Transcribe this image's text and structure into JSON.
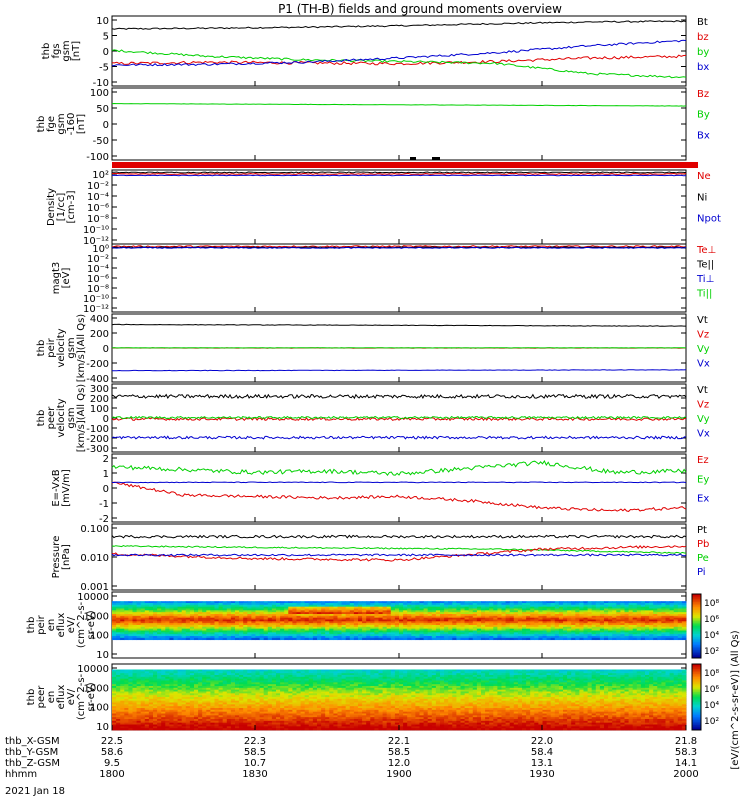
{
  "title": "P1 (TH-B) fields and ground moments overview",
  "colors": {
    "black": "#000000",
    "red": "#e00000",
    "green": "#00d000",
    "blue": "#0000d0"
  },
  "panels": [
    {
      "id": "fgs",
      "ylabel": [
        "thb",
        "fgs",
        "gsm",
        "[nT]"
      ],
      "yticks": [
        "10",
        "5",
        "0",
        "-5",
        "-10"
      ],
      "ylim": [
        -10,
        10
      ],
      "legend": [
        {
          "label": "Bt",
          "color": "#000000"
        },
        {
          "label": "bz",
          "color": "#e00000"
        },
        {
          "label": "by",
          "color": "#00d000"
        },
        {
          "label": "bx",
          "color": "#0000d0"
        }
      ]
    },
    {
      "id": "fge",
      "ylabel": [
        "thb",
        "fge",
        "gsm",
        "-160",
        "[nT]"
      ],
      "yticks": [
        "100",
        "50",
        "0",
        "-50",
        "-100"
      ],
      "ylim": [
        -130,
        110
      ],
      "legend": [
        {
          "label": "Bz",
          "color": "#e00000"
        },
        {
          "label": "By",
          "color": "#00d000"
        },
        {
          "label": "Bx",
          "color": "#0000d0"
        }
      ]
    },
    {
      "id": "density",
      "ylabel": [
        "Density",
        "[1/cc]",
        "[cm-3]"
      ],
      "yticks": [
        "10²",
        "10⁻²",
        "10⁻⁴",
        "10⁻⁶",
        "10⁻⁸",
        "10⁻¹⁰",
        "10⁻¹²"
      ],
      "ylim": [
        -13,
        2
      ],
      "legend": [
        {
          "label": "Ne",
          "color": "#e00000"
        },
        {
          "label": "Ni",
          "color": "#000000"
        },
        {
          "label": "Npot",
          "color": "#0000d0"
        }
      ]
    },
    {
      "id": "temp",
      "ylabel": [
        "magt3",
        "[eV]"
      ],
      "yticks": [
        "10⁰",
        "10⁻²",
        "10⁻⁴",
        "10⁻⁶",
        "10⁻⁸",
        "10⁻¹⁰",
        "10⁻¹²"
      ],
      "ylim": [
        -13,
        1
      ],
      "legend": [
        {
          "label": "Te⊥",
          "color": "#e00000"
        },
        {
          "label": "Te||",
          "color": "#000000"
        },
        {
          "label": "Ti⊥",
          "color": "#0000d0"
        },
        {
          "label": "Ti||",
          "color": "#00d000"
        }
      ]
    },
    {
      "id": "peir",
      "ylabel": [
        "thb",
        "peir",
        "velocity",
        "gsm",
        "[km/s](All Qs)"
      ],
      "yticks": [
        "400",
        "200",
        "0",
        "-200",
        "-400"
      ],
      "ylim": [
        -420,
        420
      ],
      "legend": [
        {
          "label": "Vt",
          "color": "#000000"
        },
        {
          "label": "Vz",
          "color": "#e00000"
        },
        {
          "label": "Vy",
          "color": "#00d000"
        },
        {
          "label": "Vx",
          "color": "#0000d0"
        }
      ]
    },
    {
      "id": "peer",
      "ylabel": [
        "thb",
        "peer",
        "velocity",
        "gsm",
        "[km/s](All Qs)"
      ],
      "yticks": [
        "300",
        "200",
        "100",
        "0",
        "-100",
        "-200",
        "-300"
      ],
      "ylim": [
        -330,
        330
      ],
      "legend": [
        {
          "label": "Vt",
          "color": "#000000"
        },
        {
          "label": "Vz",
          "color": "#e00000"
        },
        {
          "label": "Vy",
          "color": "#00d000"
        },
        {
          "label": "Vx",
          "color": "#0000d0"
        }
      ]
    },
    {
      "id": "efield",
      "ylabel": [
        "E=-VxB",
        "[mV/m]"
      ],
      "yticks": [
        "2",
        "1",
        "0",
        "-1",
        "-2"
      ],
      "ylim": [
        -2.8,
        2.0
      ],
      "legend": [
        {
          "label": "Ez",
          "color": "#e00000"
        },
        {
          "label": "Ey",
          "color": "#00d000"
        },
        {
          "label": "Ex",
          "color": "#0000d0"
        }
      ]
    },
    {
      "id": "pressure",
      "ylabel": [
        "Pressure",
        "[nPa]"
      ],
      "yticks": [
        "0.100",
        "0.010",
        "0.001"
      ],
      "ylim": [
        -3,
        -0.9
      ],
      "legend": [
        {
          "label": "Pt",
          "color": "#000000"
        },
        {
          "label": "Pb",
          "color": "#e00000"
        },
        {
          "label": "Pe",
          "color": "#00d000"
        },
        {
          "label": "Pi",
          "color": "#0000d0"
        }
      ]
    },
    {
      "id": "peir_en",
      "ylabel": [
        "thb",
        "peir",
        "en",
        "eflux",
        "eV/",
        "(cm^2-s-",
        "sr-eV)"
      ],
      "yticks": [
        "10000",
        "1000",
        "100",
        "10"
      ],
      "ylim": [
        0.7,
        4.3
      ]
    },
    {
      "id": "peer_en",
      "ylabel": [
        "thb",
        "peer",
        "en",
        "eflux",
        "eV/",
        "(cm^2-s-",
        "sr-eV)"
      ],
      "yticks": [
        "10000",
        "1000",
        "100",
        "10"
      ],
      "ylim": [
        0.7,
        4.3
      ]
    }
  ],
  "colorbar": {
    "ticks": [
      "10⁸",
      "10⁶",
      "10⁴",
      "10²",
      "10⁸",
      "10⁶",
      "10⁴",
      "10²"
    ],
    "label": "[eV/(cm^2-s-sr-eV)] (All Qs)"
  },
  "xaxis": {
    "rows": [
      {
        "label": "thb_X-GSM",
        "values": [
          "22.5",
          "22.3",
          "22.1",
          "22.0",
          "21.8"
        ]
      },
      {
        "label": "thb_Y-GSM",
        "values": [
          "58.6",
          "58.5",
          "58.5",
          "58.4",
          "58.3"
        ]
      },
      {
        "label": "thb_Z-GSM",
        "values": [
          "9.5",
          "10.7",
          "12.0",
          "13.1",
          "14.1"
        ]
      },
      {
        "label": "hhmm",
        "values": [
          "1800",
          "1830",
          "1900",
          "1930",
          "2000"
        ]
      }
    ],
    "date": "2021 Jan 18"
  },
  "chart_data": {
    "type": "line",
    "title": "P1 (TH-B) fields and ground moments overview",
    "x": [
      "1800",
      "1830",
      "1900",
      "1930",
      "2000"
    ],
    "series": [
      {
        "name": "Bt",
        "values": [
          6.5,
          6.5,
          7.0,
          7.5,
          8.5
        ]
      },
      {
        "name": "bz",
        "values": [
          -3.5,
          -3.0,
          -3.5,
          -3.0,
          -1.5
        ]
      },
      {
        "name": "by",
        "values": [
          0.0,
          -2.0,
          -3.0,
          -3.5,
          -7.5
        ]
      },
      {
        "name": "bx",
        "values": [
          -4.0,
          -3.5,
          -2.5,
          -1.0,
          3.0
        ]
      },
      {
        "name": "Ey",
        "values": [
          1.0,
          0.8,
          0.6,
          0.9,
          0.7
        ]
      },
      {
        "name": "Ez",
        "values": [
          0.0,
          -1.0,
          -1.1,
          -1.3,
          -2.0
        ]
      },
      {
        "name": "Ex",
        "values": [
          0.0,
          0.0,
          0.0,
          0.0,
          0.0
        ]
      },
      {
        "name": "Pt",
        "values": [
          0.05,
          0.045,
          0.045,
          0.04,
          0.04
        ]
      },
      {
        "name": "Pe",
        "values": [
          0.025,
          0.022,
          0.022,
          0.02,
          0.015
        ]
      },
      {
        "name": "Pb",
        "values": [
          0.014,
          0.012,
          0.01,
          0.015,
          0.025
        ]
      },
      {
        "name": "Pi",
        "values": [
          0.013,
          0.013,
          0.014,
          0.014,
          0.013
        ]
      }
    ],
    "xlabel": "hhmm"
  }
}
